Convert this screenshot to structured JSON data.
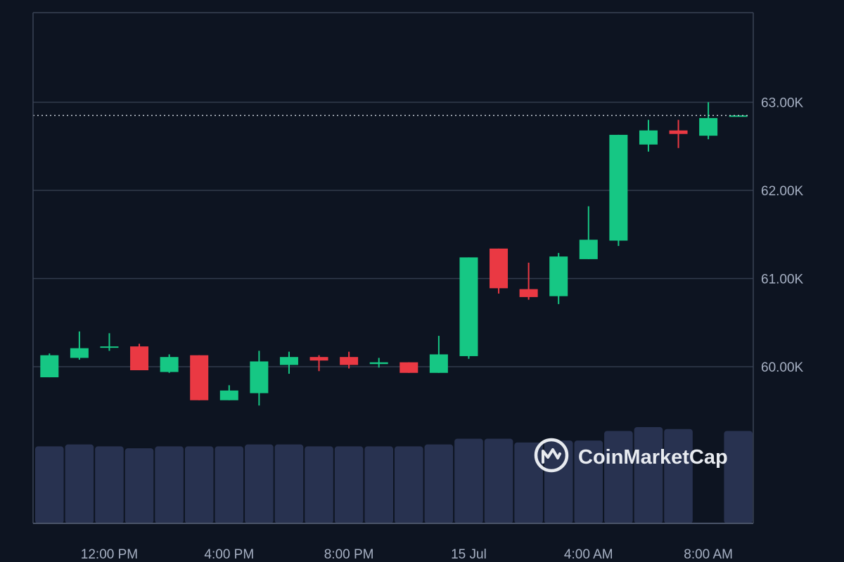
{
  "chart_data": {
    "type": "candlestick",
    "title": "",
    "xlabel": "",
    "ylabel": "",
    "interval_hours": 1,
    "ylim": [
      58600,
      64000
    ],
    "y_ticks": [
      {
        "value": 60000,
        "label": "60.00K"
      },
      {
        "value": 61000,
        "label": "61.00K"
      },
      {
        "value": 62000,
        "label": "62.00K"
      },
      {
        "value": 63000,
        "label": "63.00K"
      }
    ],
    "x_ticks": [
      {
        "at_candle": 2.5,
        "label": "12:00 PM"
      },
      {
        "at_candle": 6.5,
        "label": "4:00 PM"
      },
      {
        "at_candle": 10.5,
        "label": "8:00 PM"
      },
      {
        "at_candle": 14.5,
        "label": "15 Jul"
      },
      {
        "at_candle": 18.5,
        "label": "4:00 AM"
      },
      {
        "at_candle": 22.5,
        "label": "8:00 AM"
      }
    ],
    "last_price": 62850,
    "grid": true,
    "colors": {
      "up": "#16c784",
      "down": "#ea3943",
      "volume": "#283250",
      "grid": "#323b4c",
      "frame": "#3a4355"
    },
    "candles": [
      {
        "open": 59880,
        "high": 60150,
        "low": 59880,
        "close": 60130,
        "volume": 0.8
      },
      {
        "open": 60100,
        "high": 60400,
        "low": 60080,
        "close": 60210,
        "volume": 0.82
      },
      {
        "open": 60220,
        "high": 60380,
        "low": 60180,
        "close": 60230,
        "volume": 0.8
      },
      {
        "open": 60230,
        "high": 60260,
        "low": 59960,
        "close": 59960,
        "volume": 0.78
      },
      {
        "open": 59940,
        "high": 60140,
        "low": 59930,
        "close": 60110,
        "volume": 0.8
      },
      {
        "open": 60130,
        "high": 60130,
        "low": 59620,
        "close": 59620,
        "volume": 0.8
      },
      {
        "open": 59620,
        "high": 59790,
        "low": 59620,
        "close": 59730,
        "volume": 0.8
      },
      {
        "open": 59700,
        "high": 60180,
        "low": 59560,
        "close": 60060,
        "volume": 0.82
      },
      {
        "open": 60020,
        "high": 60170,
        "low": 59920,
        "close": 60110,
        "volume": 0.82
      },
      {
        "open": 60110,
        "high": 60130,
        "low": 59950,
        "close": 60070,
        "volume": 0.8
      },
      {
        "open": 60110,
        "high": 60170,
        "low": 59980,
        "close": 60020,
        "volume": 0.8
      },
      {
        "open": 60030,
        "high": 60100,
        "low": 59990,
        "close": 60050,
        "volume": 0.8
      },
      {
        "open": 60050,
        "high": 60050,
        "low": 59930,
        "close": 59930,
        "volume": 0.8
      },
      {
        "open": 59930,
        "high": 60350,
        "low": 59930,
        "close": 60140,
        "volume": 0.82
      },
      {
        "open": 60120,
        "high": 61240,
        "low": 60090,
        "close": 61240,
        "volume": 0.88
      },
      {
        "open": 61340,
        "high": 61340,
        "low": 60830,
        "close": 60890,
        "volume": 0.88
      },
      {
        "open": 60880,
        "high": 61180,
        "low": 60760,
        "close": 60790,
        "volume": 0.84
      },
      {
        "open": 60800,
        "high": 61290,
        "low": 60710,
        "close": 61250,
        "volume": 0.86
      },
      {
        "open": 61220,
        "high": 61820,
        "low": 61220,
        "close": 61440,
        "volume": 0.86
      },
      {
        "open": 61430,
        "high": 62630,
        "low": 61370,
        "close": 62630,
        "volume": 0.96
      },
      {
        "open": 62520,
        "high": 62800,
        "low": 62440,
        "close": 62680,
        "volume": 1.0
      },
      {
        "open": 62680,
        "high": 62800,
        "low": 62480,
        "close": 62640,
        "volume": 0.98
      },
      {
        "open": 62620,
        "high": 63000,
        "low": 62580,
        "close": 62820,
        "volume": 0.0
      },
      {
        "open": 62850,
        "high": 62850,
        "low": 62850,
        "close": 62850,
        "volume": 0.96
      }
    ]
  },
  "watermark": {
    "brand": "CoinMarketCap"
  }
}
